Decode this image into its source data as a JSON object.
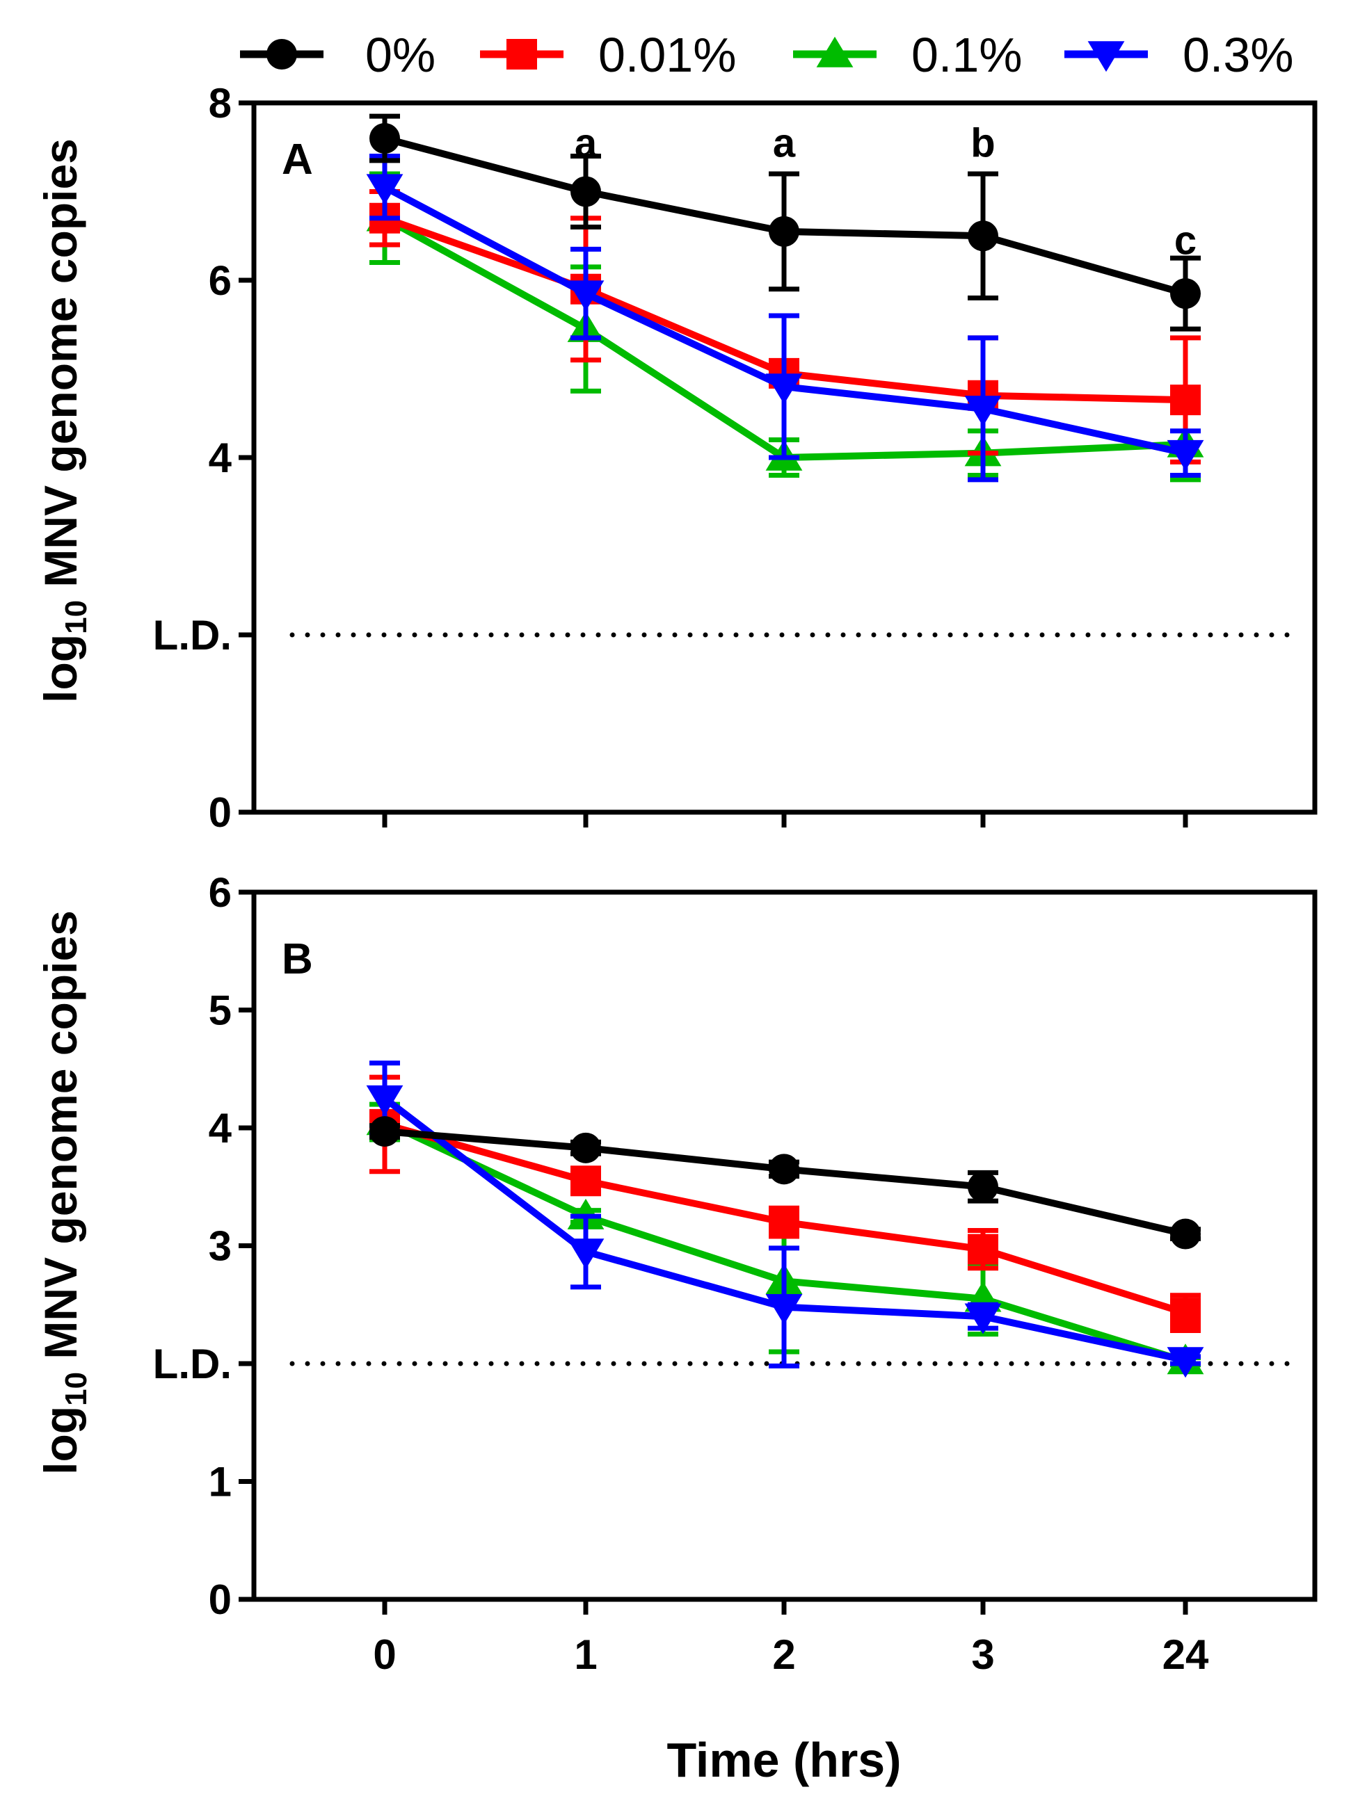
{
  "legend": [
    {
      "label": "0%",
      "color": "#000000",
      "marker": "circle"
    },
    {
      "label": "0.01%",
      "color": "#ff0000",
      "marker": "square"
    },
    {
      "label": "0.1%",
      "color": "#00bb00",
      "marker": "triangle-up"
    },
    {
      "label": "0.3%",
      "color": "#0000ff",
      "marker": "triangle-down"
    }
  ],
  "xlabel": "Time (hrs)",
  "chart_data": [
    {
      "type": "line",
      "panel": "A",
      "categories": [
        "0",
        "1",
        "2",
        "3",
        "24"
      ],
      "ylabel_main": "log",
      "ylabel_sub": "10",
      "ylabel_rest": " MNV genome copies",
      "ylim": [
        0,
        8
      ],
      "yticks": [
        0,
        4,
        6,
        8
      ],
      "ytick_labels": [
        "0",
        "4",
        "6",
        "8"
      ],
      "detection_limit": {
        "value": 2,
        "label": "L.D."
      },
      "annotations": [
        {
          "category": "1",
          "y": 7.55,
          "text": "a"
        },
        {
          "category": "2",
          "y": 7.55,
          "text": "a"
        },
        {
          "category": "3",
          "y": 7.55,
          "text": "b"
        },
        {
          "category": "24",
          "y": 6.45,
          "text": "c"
        }
      ],
      "series": [
        {
          "name": "0%",
          "values": [
            7.6,
            7.0,
            6.55,
            6.5,
            5.85
          ],
          "errors": [
            0.25,
            0.4,
            0.65,
            0.7,
            0.4
          ]
        },
        {
          "name": "0.01%",
          "values": [
            6.7,
            5.9,
            4.95,
            4.7,
            4.65
          ],
          "errors": [
            0.3,
            0.8,
            0.1,
            0.65,
            0.7
          ]
        },
        {
          "name": "0.1%",
          "values": [
            6.7,
            5.45,
            4.0,
            4.05,
            4.15
          ],
          "errors": [
            0.5,
            0.7,
            0.2,
            0.25,
            0.4
          ]
        },
        {
          "name": "0.3%",
          "values": [
            7.05,
            5.85,
            4.8,
            4.55,
            4.05
          ],
          "errors": [
            0.35,
            0.5,
            0.8,
            0.8,
            0.25
          ]
        }
      ]
    },
    {
      "type": "line",
      "panel": "B",
      "categories": [
        "0",
        "1",
        "2",
        "3",
        "24"
      ],
      "ylabel_main": "log",
      "ylabel_sub": "10",
      "ylabel_rest": " MNV genome copies",
      "ylim": [
        0,
        6
      ],
      "yticks": [
        0,
        1,
        3,
        4,
        5,
        6
      ],
      "ytick_labels": [
        "0",
        "1",
        "3",
        "4",
        "5",
        "6"
      ],
      "detection_limit": {
        "value": 2,
        "label": "L.D."
      },
      "annotations": [],
      "series": [
        {
          "name": "0%",
          "values": [
            3.97,
            3.83,
            3.65,
            3.5,
            3.1
          ],
          "errors": [
            0.05,
            0.05,
            0.06,
            0.12,
            0.04
          ]
        },
        {
          "name": "0.01%",
          "values": [
            4.03,
            3.55,
            3.2,
            2.97,
            2.43
          ],
          "errors": [
            0.4,
            0.08,
            0.12,
            0.16,
            0.15
          ]
        },
        {
          "name": "0.1%",
          "values": [
            4.05,
            3.25,
            2.7,
            2.55,
            2.02
          ],
          "errors": [
            0.15,
            0.05,
            0.6,
            0.3,
            0.03
          ]
        },
        {
          "name": "0.3%",
          "values": [
            4.25,
            2.95,
            2.48,
            2.4,
            2.03
          ],
          "errors": [
            0.3,
            0.3,
            0.5,
            0.1,
            0.03
          ]
        }
      ]
    }
  ]
}
